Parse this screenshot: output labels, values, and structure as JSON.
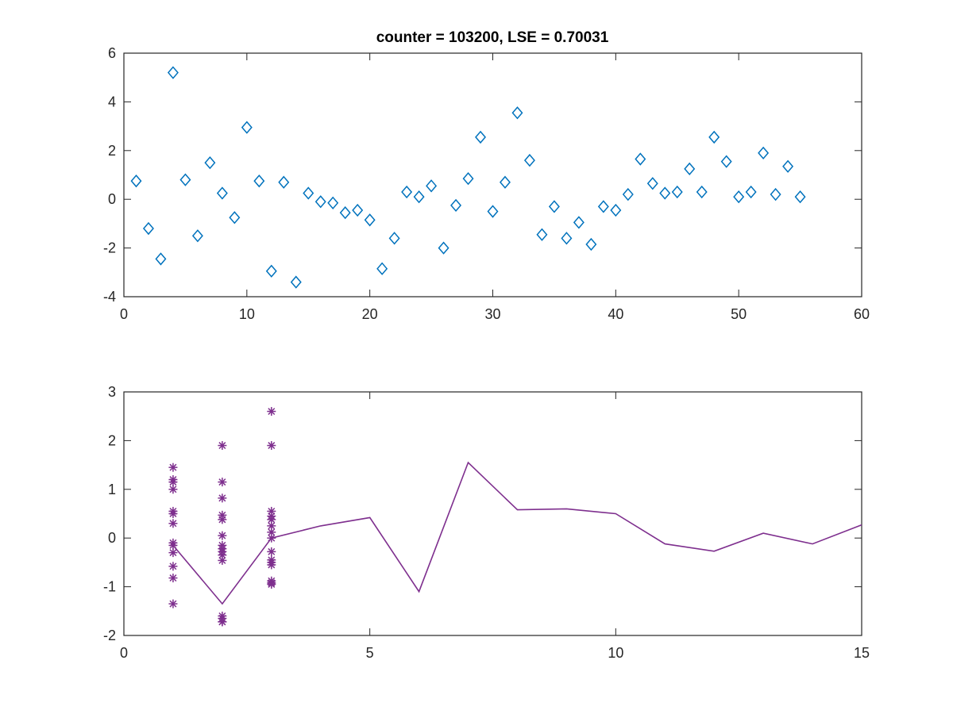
{
  "figure": {
    "background": "#ffffff"
  },
  "chart_data": [
    {
      "type": "scatter",
      "title": "counter = 103200, LSE = 0.70031",
      "xlabel": "",
      "ylabel": "",
      "xlim": [
        0,
        60
      ],
      "ylim": [
        -4,
        6
      ],
      "xticks": [
        0,
        10,
        20,
        30,
        40,
        50,
        60
      ],
      "yticks": [
        -4,
        -2,
        0,
        2,
        4,
        6
      ],
      "grid": false,
      "series": [
        {
          "marker": "diamond",
          "color": "#0072BD",
          "x": [
            1,
            2,
            3,
            4,
            5,
            6,
            7,
            8,
            9,
            10,
            11,
            12,
            13,
            14,
            15,
            16,
            17,
            18,
            19,
            20,
            21,
            22,
            23,
            24,
            25,
            26,
            27,
            28,
            29,
            30,
            31,
            32,
            33,
            34,
            35,
            36,
            37,
            38,
            39,
            40,
            41,
            42,
            43,
            44,
            45,
            46,
            47,
            48,
            49,
            50,
            51,
            52,
            53,
            54,
            55
          ],
          "y": [
            0.75,
            -1.2,
            -2.45,
            5.2,
            0.8,
            -1.5,
            1.5,
            0.25,
            -0.75,
            2.95,
            0.75,
            -2.95,
            0.7,
            -3.4,
            0.25,
            -0.1,
            -0.15,
            -0.55,
            -0.45,
            -0.85,
            -2.85,
            -1.6,
            0.3,
            0.1,
            0.55,
            -2.0,
            -0.25,
            0.85,
            2.55,
            -0.5,
            0.7,
            3.55,
            1.6,
            -1.45,
            -0.3,
            -1.6,
            -0.95,
            -1.85,
            -0.3,
            -0.45,
            0.2,
            1.65,
            0.65,
            0.25,
            0.3,
            1.25,
            0.3,
            2.55,
            1.55,
            0.1,
            0.3,
            1.9,
            0.2,
            1.35,
            0.1
          ]
        }
      ]
    },
    {
      "type": "scatter",
      "title": "",
      "xlabel": "",
      "ylabel": "",
      "xlim": [
        0,
        15
      ],
      "ylim": [
        -2,
        3
      ],
      "xticks": [
        0,
        5,
        10,
        15
      ],
      "yticks": [
        -2,
        -1,
        0,
        1,
        2,
        3
      ],
      "grid": false,
      "series": [
        {
          "marker": "asterisk",
          "color": "#7E2F8E",
          "x": [
            1,
            1,
            1,
            1,
            1,
            1,
            1,
            1,
            1,
            1,
            1,
            1,
            1,
            2,
            2,
            2,
            2,
            2,
            2,
            2,
            2,
            2,
            2,
            2,
            2,
            2,
            2,
            2,
            3,
            3,
            3,
            3,
            3,
            3,
            3,
            3,
            3,
            3,
            3,
            3,
            3,
            3,
            3
          ],
          "y": [
            1.45,
            1.2,
            1.15,
            1.0,
            0.55,
            0.5,
            0.3,
            -0.1,
            -0.15,
            -0.3,
            -0.58,
            -0.82,
            -1.35,
            1.9,
            1.15,
            0.82,
            0.47,
            0.38,
            0.05,
            -0.15,
            -0.22,
            -0.28,
            -0.35,
            -0.46,
            -1.6,
            -1.65,
            -1.72,
            -1.72,
            2.6,
            1.9,
            0.55,
            0.45,
            0.38,
            0.25,
            0.12,
            0.0,
            -0.28,
            -0.45,
            -0.5,
            -0.55,
            -0.88,
            -0.92,
            -0.95
          ]
        },
        {
          "marker": "none",
          "line": "solid",
          "color": "#7E2F8E",
          "x": [
            1,
            2,
            3,
            4,
            5,
            6,
            7,
            8,
            9,
            10,
            11,
            12,
            13,
            14,
            15
          ],
          "y": [
            -0.15,
            -1.35,
            0.0,
            0.25,
            0.42,
            -1.1,
            1.55,
            0.58,
            0.6,
            0.5,
            -0.12,
            -0.27,
            0.1,
            -0.12,
            0.27
          ]
        }
      ]
    }
  ]
}
